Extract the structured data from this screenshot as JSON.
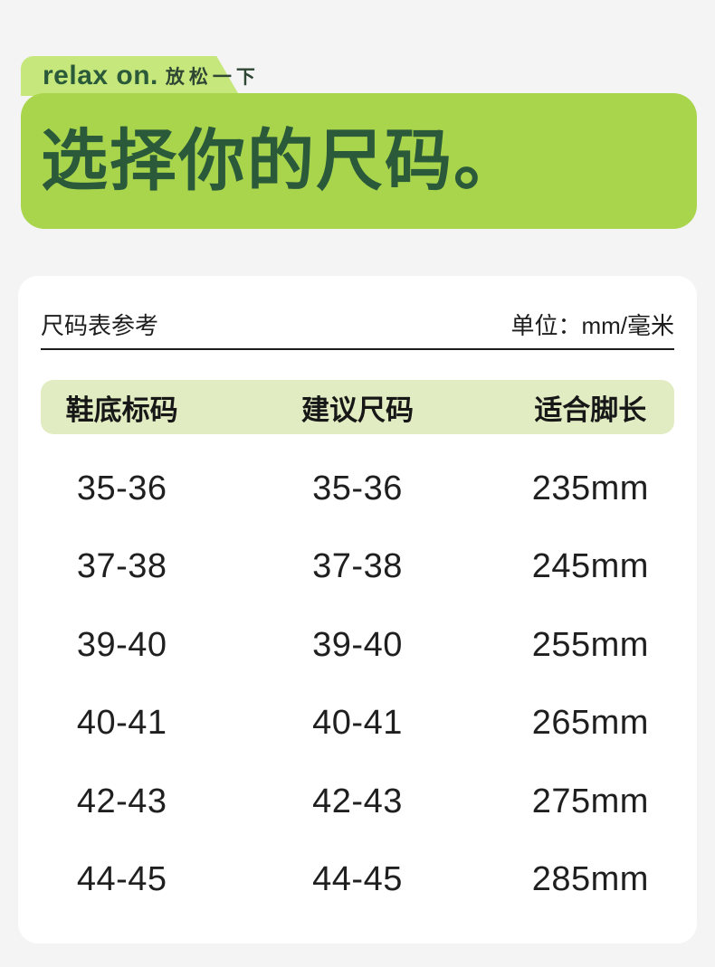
{
  "colors": {
    "page-bg": "#f4f4f4",
    "banner-bg": "#a9d54c",
    "tab-bg": "#c6e77c",
    "dark-green": "#2b5a3a",
    "thead-bg": "#e2ecc2",
    "ink": "#1d1d1d"
  },
  "banner": {
    "brand_en": "relax on.",
    "brand_cn": "放松一下",
    "title": "选择你的尺码。"
  },
  "card": {
    "header": {
      "title": "尺码表参考",
      "unit": "单位：mm/毫米"
    },
    "table": {
      "columns": [
        "鞋底标码",
        "建议尺码",
        "适合脚长"
      ],
      "rows": [
        [
          "35-36",
          "35-36",
          "235mm"
        ],
        [
          "37-38",
          "37-38",
          "245mm"
        ],
        [
          "39-40",
          "39-40",
          "255mm"
        ],
        [
          "40-41",
          "40-41",
          "265mm"
        ],
        [
          "42-43",
          "42-43",
          "275mm"
        ],
        [
          "44-45",
          "44-45",
          "285mm"
        ]
      ]
    }
  }
}
